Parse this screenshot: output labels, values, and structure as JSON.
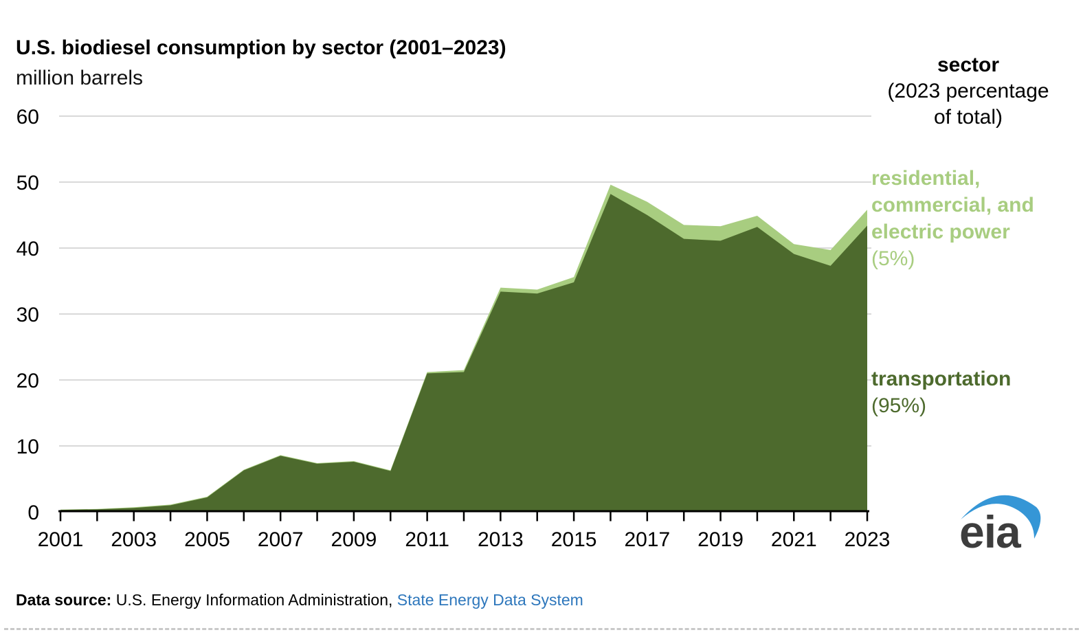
{
  "header": {
    "title": "U.S. biodiesel consumption by sector (2001–2023)",
    "subtitle": "million barrels"
  },
  "legend": {
    "header_title": "sector",
    "header_sub_line1": "(2023 percentage",
    "header_sub_line2": "of total)",
    "series": [
      {
        "name_lines": [
          "residential,",
          "commercial, and",
          "electric power"
        ],
        "share": "(5%)",
        "color": "#a8cd80"
      },
      {
        "name_lines": [
          "transportation"
        ],
        "share": "(95%)",
        "color": "#4d6a2d"
      }
    ]
  },
  "chart_data": {
    "type": "area",
    "stacked": true,
    "title": "U.S. biodiesel consumption by sector (2001–2023)",
    "ylabel": "million barrels",
    "x": [
      2001,
      2002,
      2003,
      2004,
      2005,
      2006,
      2007,
      2008,
      2009,
      2010,
      2011,
      2012,
      2013,
      2014,
      2015,
      2016,
      2017,
      2018,
      2019,
      2020,
      2021,
      2022,
      2023
    ],
    "series": [
      {
        "name": "transportation",
        "color": "#4d6a2d",
        "values": [
          0.3,
          0.4,
          0.6,
          1.0,
          2.2,
          6.3,
          8.5,
          7.3,
          7.6,
          6.2,
          21.0,
          21.2,
          33.4,
          33.1,
          34.8,
          48.2,
          45.0,
          41.4,
          41.1,
          43.2,
          39.1,
          37.3,
          43.4
        ]
      },
      {
        "name": "residential, commercial, and electric power",
        "color": "#a8cd80",
        "values": [
          0.05,
          0.05,
          0.1,
          0.1,
          0.1,
          0.1,
          0.1,
          0.1,
          0.1,
          0.1,
          0.2,
          0.3,
          0.6,
          0.6,
          0.8,
          1.4,
          2.0,
          2.1,
          2.2,
          1.7,
          1.5,
          2.4,
          2.4
        ]
      }
    ],
    "ylim": [
      0,
      60
    ],
    "yticks": [
      0,
      10,
      20,
      30,
      40,
      50,
      60
    ],
    "xtick_labels": [
      2001,
      2003,
      2005,
      2007,
      2009,
      2011,
      2013,
      2015,
      2017,
      2019,
      2021,
      2023
    ],
    "grid": "horizontal",
    "gridline_color": "#d9d9d9",
    "axis_color": "#000000",
    "legend_position": "right"
  },
  "footer": {
    "source_label": "Data source:",
    "source_text": "U.S. Energy Information Administration,",
    "source_link": "State Energy Data System",
    "link_color": "#2e77bc"
  },
  "logo": {
    "text": "eia",
    "text_color": "#3d3d3d",
    "swoosh_color": "#3596d6"
  }
}
